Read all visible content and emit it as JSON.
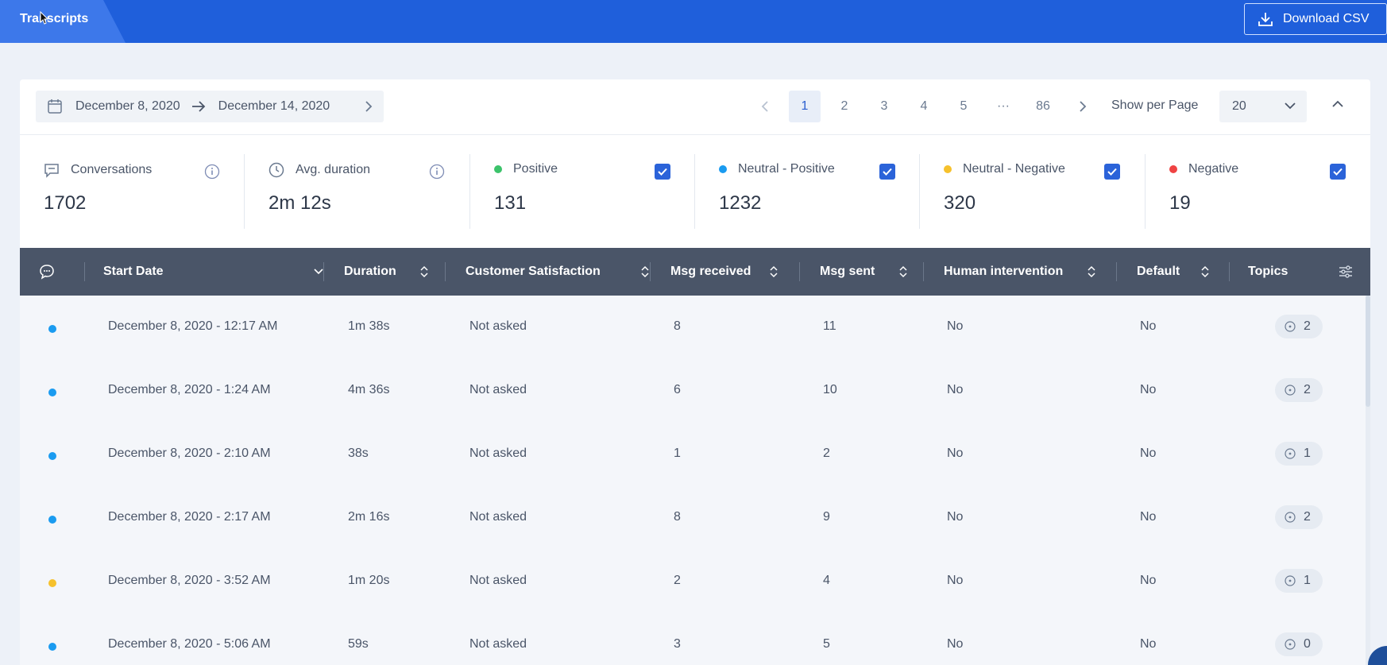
{
  "header": {
    "tab_label": "Transcripts",
    "download_label": "Download CSV"
  },
  "toolbar": {
    "date_start": "December 8, 2020",
    "date_end": "December 14, 2020",
    "pages": [
      "1",
      "2",
      "3",
      "4",
      "5",
      "···",
      "86"
    ],
    "current_page": "1",
    "per_page_label": "Show per Page",
    "per_page_value": "20"
  },
  "stats": {
    "conversations": {
      "label": "Conversations",
      "value": "1702"
    },
    "avg_duration": {
      "label": "Avg. duration",
      "value": "2m 12s"
    },
    "positive": {
      "label": "Positive",
      "value": "131",
      "color": "#3cc36b",
      "checked": true
    },
    "neutral_positive": {
      "label": "Neutral - Positive",
      "value": "1232",
      "color": "#1a9bf0",
      "checked": true
    },
    "neutral_negative": {
      "label": "Neutral - Negative",
      "value": "320",
      "color": "#f6c12c",
      "checked": true
    },
    "negative": {
      "label": "Negative",
      "value": "19",
      "color": "#ef4343",
      "checked": true
    }
  },
  "table": {
    "columns": {
      "start_date": "Start Date",
      "duration": "Duration",
      "satisfaction": "Customer Satisfaction",
      "msg_received": "Msg received",
      "msg_sent": "Msg sent",
      "human": "Human intervention",
      "default": "Default",
      "topics": "Topics"
    },
    "rows": [
      {
        "sentiment_color": "#1a9bf0",
        "start_date": "December 8, 2020 - 12:17 AM",
        "duration": "1m 38s",
        "satisfaction": "Not asked",
        "msg_received": "8",
        "msg_sent": "11",
        "human": "No",
        "default": "No",
        "topics": "2"
      },
      {
        "sentiment_color": "#1a9bf0",
        "start_date": "December 8, 2020 - 1:24 AM",
        "duration": "4m 36s",
        "satisfaction": "Not asked",
        "msg_received": "6",
        "msg_sent": "10",
        "human": "No",
        "default": "No",
        "topics": "2"
      },
      {
        "sentiment_color": "#1a9bf0",
        "start_date": "December 8, 2020 - 2:10 AM",
        "duration": "38s",
        "satisfaction": "Not asked",
        "msg_received": "1",
        "msg_sent": "2",
        "human": "No",
        "default": "No",
        "topics": "1"
      },
      {
        "sentiment_color": "#1a9bf0",
        "start_date": "December 8, 2020 - 2:17 AM",
        "duration": "2m 16s",
        "satisfaction": "Not asked",
        "msg_received": "8",
        "msg_sent": "9",
        "human": "No",
        "default": "No",
        "topics": "2"
      },
      {
        "sentiment_color": "#f6c12c",
        "start_date": "December 8, 2020 - 3:52 AM",
        "duration": "1m 20s",
        "satisfaction": "Not asked",
        "msg_received": "2",
        "msg_sent": "4",
        "human": "No",
        "default": "No",
        "topics": "1"
      },
      {
        "sentiment_color": "#1a9bf0",
        "start_date": "December 8, 2020 - 5:06 AM",
        "duration": "59s",
        "satisfaction": "Not asked",
        "msg_received": "3",
        "msg_sent": "5",
        "human": "No",
        "default": "No",
        "topics": "0"
      }
    ]
  }
}
